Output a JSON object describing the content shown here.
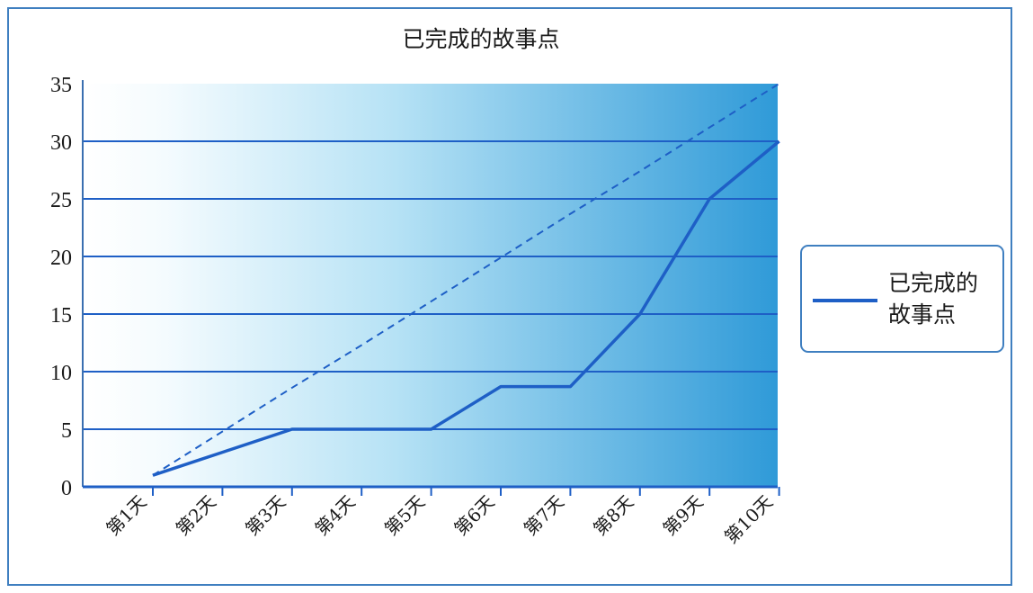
{
  "chart_data": {
    "type": "line",
    "title": "已完成的故事点",
    "categories": [
      "第1天",
      "第2天",
      "第3天",
      "第4天",
      "第5天",
      "第6天",
      "第7天",
      "第8天",
      "第9天",
      "第10天"
    ],
    "series": [
      {
        "name": "已完成的故事点",
        "values": [
          1,
          3,
          5,
          5,
          5,
          8.7,
          8.7,
          15,
          25,
          30
        ],
        "style": "solid"
      },
      {
        "values": [
          1,
          4.8,
          8.6,
          12.3,
          16.1,
          19.9,
          23.7,
          27.4,
          31.2,
          35
        ],
        "style": "dashed"
      }
    ],
    "ylim": [
      0,
      35
    ],
    "yticks": [
      0,
      5,
      10,
      15,
      20,
      25,
      30,
      35
    ],
    "grid": true,
    "legend": "right",
    "colors": {
      "line": "#1e5fc6",
      "grid": "#1e5fc6",
      "bg_light": "#ffffff",
      "bg_dark": "#2f9ad8",
      "frame": "#3f7fc0"
    }
  }
}
